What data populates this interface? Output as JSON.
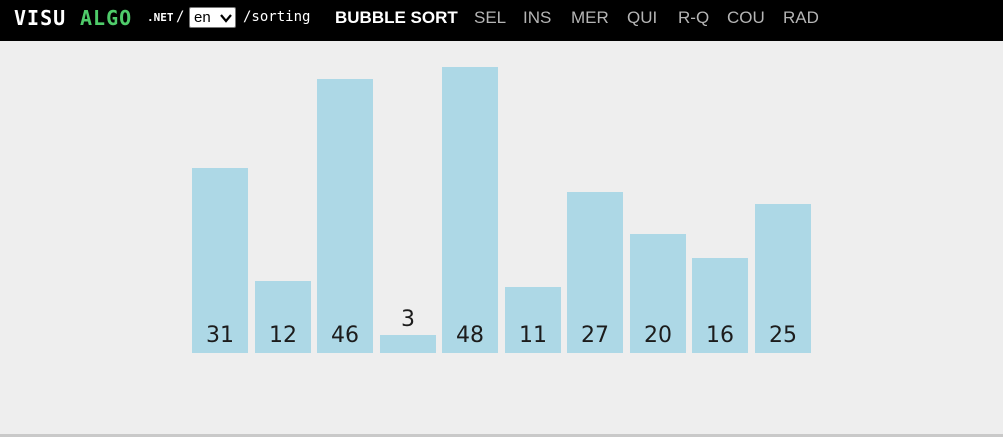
{
  "header": {
    "logo": {
      "part1": "VISU",
      "part2": "ALGO",
      "part3": ".NET",
      "separator": "/"
    },
    "language": {
      "selected": "en",
      "chevron_icon": "chevron-down-icon"
    },
    "path": "/sorting",
    "nav": [
      {
        "label": "BUBBLE SORT",
        "active": true
      },
      {
        "label": "SEL",
        "active": false
      },
      {
        "label": "INS",
        "active": false
      },
      {
        "label": "MER",
        "active": false
      },
      {
        "label": "QUI",
        "active": false
      },
      {
        "label": "R-Q",
        "active": false
      },
      {
        "label": "COU",
        "active": false
      },
      {
        "label": "RAD",
        "active": false
      }
    ]
  },
  "array": {
    "values": [
      31,
      12,
      46,
      3,
      48,
      11,
      27,
      20,
      16,
      25
    ],
    "bar_color": "#add8e6"
  },
  "colors": {
    "topbar": "#000000",
    "background": "#eeeeee",
    "logo_accent": "#4fcb6a",
    "nav_inactive": "#b5b5b5",
    "nav_active": "#ffffff"
  }
}
